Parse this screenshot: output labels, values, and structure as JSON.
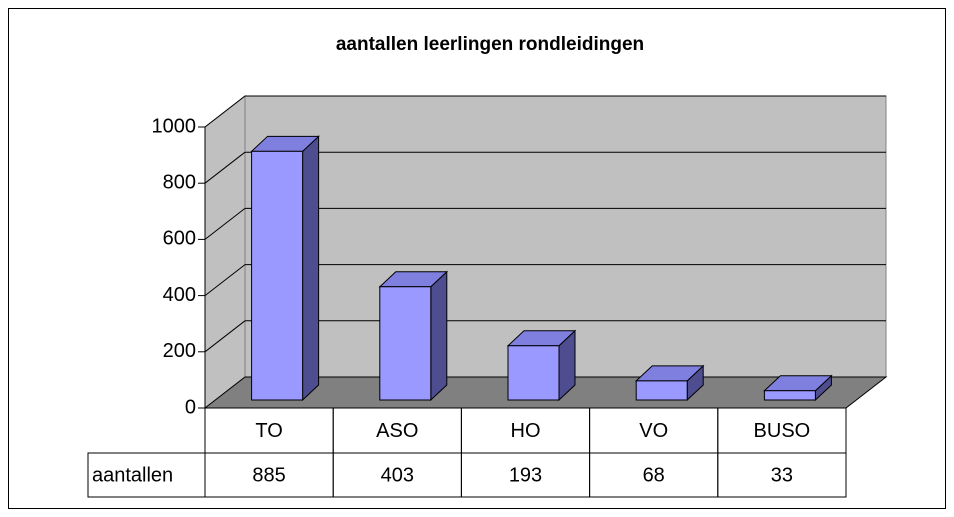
{
  "chart_data": {
    "type": "bar3d",
    "title": "aantallen leerlingen rondleidingen",
    "categories": [
      "TO",
      "ASO",
      "HO",
      "VO",
      "BUSO"
    ],
    "series": [
      {
        "name": "aantallen",
        "color": "#9999ff",
        "values": [
          885,
          403,
          193,
          68,
          33
        ]
      }
    ],
    "ylim": [
      0,
      1000
    ],
    "yticks": [
      0,
      200,
      400,
      600,
      800,
      1000
    ],
    "grid": true,
    "data_table": true
  }
}
